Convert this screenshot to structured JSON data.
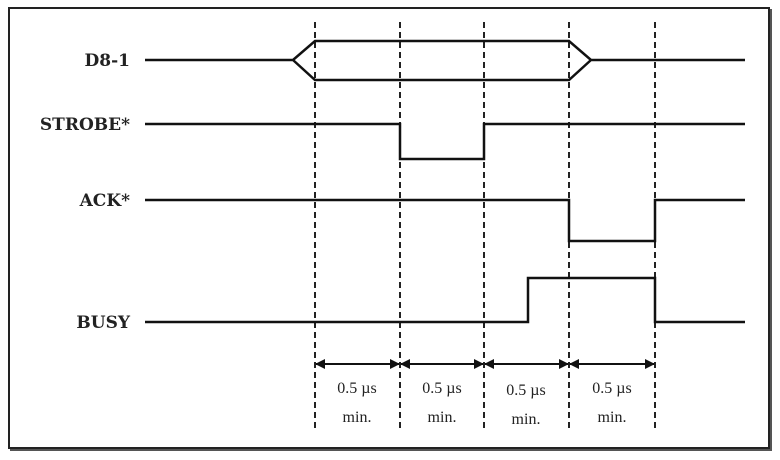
{
  "signals": [
    {
      "name": "D8-1"
    },
    {
      "name": "STROBE*"
    },
    {
      "name": "ACK*"
    },
    {
      "name": "BUSY"
    }
  ],
  "intervals": [
    {
      "duration": "0.5 µs",
      "qualifier": "min."
    },
    {
      "duration": "0.5 µs",
      "qualifier": "min."
    },
    {
      "duration": "0.5 µs",
      "qualifier": "min."
    },
    {
      "duration": "0.5 µs",
      "qualifier": "min."
    }
  ]
}
